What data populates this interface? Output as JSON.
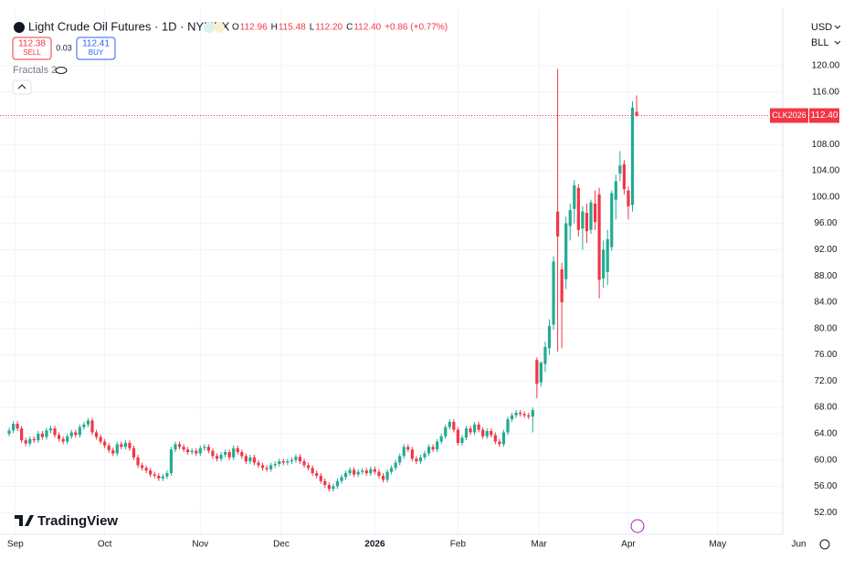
{
  "chart_data": {
    "type": "candlestick",
    "title": "Light Crude Oil Futures · 1D · NYMEX",
    "legend": [
      {
        "key": "O",
        "value": "112.96"
      },
      {
        "key": "H",
        "value": "115.48"
      },
      {
        "key": "L",
        "value": "112.20"
      },
      {
        "key": "C",
        "value": "112.40"
      }
    ],
    "change": "+0.86 (+0.77%)",
    "sell_price": "112.38",
    "sell_label": "SELL",
    "spread": "0.03",
    "buy_price": "112.41",
    "buy_label": "BUY",
    "indicator": "Fractals 2",
    "currency": "USD",
    "unit": "BLL",
    "symbol_tag": "CLK2026",
    "last_price_label": "112.40",
    "brand": "TradingView",
    "up_color": "#22ab94",
    "down_color": "#f23645",
    "grid": true,
    "xlim": [
      0,
      190
    ],
    "xticks": [
      {
        "value": 1.5,
        "label": "Sep"
      },
      {
        "value": 23,
        "label": "Oct"
      },
      {
        "value": 46,
        "label": "Nov"
      },
      {
        "value": 65.5,
        "label": "Dec"
      },
      {
        "value": 88,
        "label": "2026"
      },
      {
        "value": 108,
        "label": "Feb"
      },
      {
        "value": 127.5,
        "label": "Mar"
      },
      {
        "value": 149,
        "label": "Apr"
      },
      {
        "value": 170.5,
        "label": "May"
      },
      {
        "value": 190,
        "label": "Jun"
      }
    ],
    "ylim": [
      48.7,
      127.2
    ],
    "yticks": [
      {
        "value": 52,
        "label": "52.00"
      },
      {
        "value": 56,
        "label": "56.00"
      },
      {
        "value": 60,
        "label": "60.00"
      },
      {
        "value": 64,
        "label": "64.00"
      },
      {
        "value": 68,
        "label": "68.00"
      },
      {
        "value": 72,
        "label": "72.00"
      },
      {
        "value": 76,
        "label": "76.00"
      },
      {
        "value": 80,
        "label": "80.00"
      },
      {
        "value": 84,
        "label": "84.00"
      },
      {
        "value": 88,
        "label": "88.00"
      },
      {
        "value": 92,
        "label": "92.00"
      },
      {
        "value": 96,
        "label": "96.00"
      },
      {
        "value": 100,
        "label": "100.00"
      },
      {
        "value": 104,
        "label": "104.00"
      },
      {
        "value": 108,
        "label": "108.00"
      },
      {
        "value": 112,
        "label": "112.00"
      },
      {
        "value": 116,
        "label": "116.00"
      },
      {
        "value": 120,
        "label": "120.00"
      }
    ],
    "last_price": 112.4,
    "ohlc": [
      [
        64.0,
        64.9,
        63.6,
        64.5
      ],
      [
        64.5,
        65.9,
        64.1,
        65.5
      ],
      [
        65.5,
        65.9,
        64.4,
        64.8
      ],
      [
        64.8,
        65.2,
        62.6,
        63.0
      ],
      [
        63.0,
        63.4,
        62.1,
        62.5
      ],
      [
        62.5,
        63.6,
        62.1,
        63.2
      ],
      [
        63.2,
        63.6,
        62.6,
        63.0
      ],
      [
        63.0,
        64.4,
        62.6,
        64.0
      ],
      [
        64.0,
        64.4,
        63.1,
        63.5
      ],
      [
        63.5,
        64.9,
        63.1,
        64.5
      ],
      [
        64.5,
        65.2,
        64.1,
        64.8
      ],
      [
        64.8,
        65.2,
        63.4,
        63.8
      ],
      [
        63.8,
        64.2,
        62.8,
        63.2
      ],
      [
        63.2,
        63.6,
        62.4,
        62.8
      ],
      [
        62.8,
        64.0,
        62.4,
        63.6
      ],
      [
        63.6,
        64.6,
        63.2,
        64.2
      ],
      [
        64.2,
        64.6,
        63.4,
        63.8
      ],
      [
        63.8,
        65.4,
        63.4,
        65.0
      ],
      [
        65.0,
        65.8,
        64.6,
        65.4
      ],
      [
        65.4,
        66.4,
        65.0,
        66.0
      ],
      [
        66.0,
        66.4,
        63.8,
        64.2
      ],
      [
        64.2,
        64.6,
        63.1,
        63.5
      ],
      [
        63.5,
        63.9,
        62.4,
        62.8
      ],
      [
        62.8,
        63.2,
        61.8,
        62.2
      ],
      [
        62.2,
        62.6,
        61.1,
        61.5
      ],
      [
        61.5,
        61.9,
        60.6,
        61.0
      ],
      [
        61.0,
        62.8,
        60.6,
        62.4
      ],
      [
        62.4,
        62.8,
        61.6,
        62.0
      ],
      [
        62.0,
        63.0,
        61.6,
        62.6
      ],
      [
        62.6,
        63.0,
        61.4,
        61.8
      ],
      [
        61.8,
        62.2,
        60.0,
        60.4
      ],
      [
        60.4,
        60.8,
        58.8,
        59.2
      ],
      [
        59.2,
        59.6,
        58.4,
        58.8
      ],
      [
        58.8,
        59.2,
        58.0,
        58.4
      ],
      [
        58.4,
        58.8,
        57.4,
        57.8
      ],
      [
        57.8,
        58.2,
        57.2,
        57.6
      ],
      [
        57.6,
        58.0,
        56.8,
        57.2
      ],
      [
        57.2,
        57.9,
        56.8,
        57.5
      ],
      [
        57.5,
        58.4,
        57.1,
        58.0
      ],
      [
        58.0,
        62.0,
        57.6,
        61.6
      ],
      [
        61.6,
        62.8,
        61.2,
        62.4
      ],
      [
        62.4,
        62.8,
        61.6,
        62.0
      ],
      [
        62.0,
        62.4,
        61.2,
        61.6
      ],
      [
        61.6,
        62.0,
        60.8,
        61.2
      ],
      [
        61.2,
        61.8,
        60.8,
        61.4
      ],
      [
        61.4,
        61.8,
        60.6,
        61.0
      ],
      [
        61.0,
        62.2,
        60.6,
        61.8
      ],
      [
        61.8,
        62.4,
        61.4,
        62.0
      ],
      [
        62.0,
        62.4,
        61.0,
        61.4
      ],
      [
        61.4,
        61.8,
        60.2,
        60.6
      ],
      [
        60.6,
        61.0,
        59.8,
        60.2
      ],
      [
        60.2,
        61.2,
        59.8,
        60.8
      ],
      [
        60.8,
        61.6,
        60.4,
        61.2
      ],
      [
        61.2,
        61.6,
        60.0,
        60.4
      ],
      [
        60.4,
        62.2,
        60.0,
        61.8
      ],
      [
        61.8,
        62.2,
        60.8,
        61.2
      ],
      [
        61.2,
        61.6,
        60.2,
        60.6
      ],
      [
        60.6,
        61.0,
        59.4,
        59.8
      ],
      [
        59.8,
        60.8,
        59.4,
        60.4
      ],
      [
        60.4,
        60.8,
        59.2,
        59.6
      ],
      [
        59.6,
        60.0,
        58.8,
        59.2
      ],
      [
        59.2,
        59.6,
        58.4,
        58.8
      ],
      [
        58.8,
        59.2,
        58.2,
        58.6
      ],
      [
        58.6,
        59.6,
        58.2,
        59.2
      ],
      [
        59.2,
        59.8,
        58.8,
        59.4
      ],
      [
        59.4,
        60.2,
        59.0,
        59.8
      ],
      [
        59.8,
        60.2,
        59.2,
        59.6
      ],
      [
        59.6,
        60.2,
        59.2,
        59.8
      ],
      [
        59.8,
        60.4,
        59.4,
        60.0
      ],
      [
        60.0,
        60.9,
        59.6,
        60.5
      ],
      [
        60.5,
        60.9,
        59.4,
        59.8
      ],
      [
        59.8,
        60.2,
        58.8,
        59.2
      ],
      [
        59.2,
        59.6,
        58.4,
        58.8
      ],
      [
        58.8,
        59.2,
        57.6,
        58.0
      ],
      [
        58.0,
        58.4,
        57.2,
        57.6
      ],
      [
        57.6,
        58.0,
        56.4,
        56.8
      ],
      [
        56.8,
        57.2,
        55.8,
        56.2
      ],
      [
        56.2,
        56.6,
        55.2,
        55.6
      ],
      [
        55.6,
        56.4,
        55.2,
        56.0
      ],
      [
        56.0,
        57.2,
        55.6,
        56.8
      ],
      [
        56.8,
        57.8,
        56.4,
        57.4
      ],
      [
        57.4,
        58.4,
        57.0,
        58.0
      ],
      [
        58.0,
        58.9,
        57.6,
        58.5
      ],
      [
        58.5,
        58.9,
        57.4,
        57.8
      ],
      [
        57.8,
        58.6,
        57.4,
        58.2
      ],
      [
        58.2,
        58.8,
        57.8,
        58.4
      ],
      [
        58.4,
        58.8,
        57.6,
        58.0
      ],
      [
        58.0,
        59.0,
        57.6,
        58.6
      ],
      [
        58.6,
        59.0,
        57.8,
        58.2
      ],
      [
        58.2,
        58.6,
        57.2,
        57.6
      ],
      [
        57.6,
        58.0,
        56.6,
        57.0
      ],
      [
        57.0,
        58.6,
        56.6,
        58.2
      ],
      [
        58.2,
        59.2,
        57.8,
        58.8
      ],
      [
        58.8,
        60.0,
        58.4,
        59.6
      ],
      [
        59.6,
        61.0,
        59.2,
        60.6
      ],
      [
        60.6,
        62.4,
        60.2,
        62.0
      ],
      [
        62.0,
        62.4,
        61.2,
        61.6
      ],
      [
        61.6,
        62.0,
        59.8,
        60.2
      ],
      [
        60.2,
        60.6,
        59.4,
        59.8
      ],
      [
        59.8,
        60.8,
        59.4,
        60.4
      ],
      [
        60.4,
        61.4,
        60.0,
        61.0
      ],
      [
        61.0,
        62.4,
        60.6,
        62.0
      ],
      [
        62.0,
        62.4,
        61.2,
        61.6
      ],
      [
        61.6,
        63.2,
        61.2,
        62.8
      ],
      [
        62.8,
        64.0,
        62.4,
        63.6
      ],
      [
        63.6,
        65.4,
        63.2,
        65.0
      ],
      [
        65.0,
        66.2,
        64.6,
        65.8
      ],
      [
        65.8,
        66.2,
        64.2,
        64.6
      ],
      [
        64.6,
        65.0,
        62.2,
        62.6
      ],
      [
        62.6,
        63.8,
        62.2,
        63.4
      ],
      [
        63.4,
        65.2,
        63.0,
        64.8
      ],
      [
        64.8,
        65.2,
        63.8,
        64.2
      ],
      [
        64.2,
        65.8,
        63.8,
        65.4
      ],
      [
        65.4,
        65.8,
        64.2,
        64.6
      ],
      [
        64.6,
        65.0,
        63.2,
        63.6
      ],
      [
        63.6,
        64.8,
        63.2,
        64.4
      ],
      [
        64.4,
        64.8,
        63.4,
        63.8
      ],
      [
        63.8,
        64.2,
        62.4,
        62.8
      ],
      [
        62.8,
        63.2,
        62.0,
        62.4
      ],
      [
        62.4,
        64.6,
        62.0,
        64.2
      ],
      [
        64.2,
        66.6,
        63.8,
        66.2
      ],
      [
        66.2,
        67.2,
        65.8,
        66.8
      ],
      [
        66.8,
        67.6,
        66.4,
        67.2
      ],
      [
        67.2,
        67.6,
        66.6,
        67.0
      ],
      [
        67.0,
        67.4,
        66.4,
        66.8
      ],
      [
        66.8,
        67.2,
        66.2,
        66.6
      ],
      [
        66.6,
        68.0,
        64.2,
        67.6
      ],
      [
        75.2,
        75.6,
        69.4,
        71.6
      ],
      [
        71.8,
        75.0,
        71.2,
        74.8
      ],
      [
        74.6,
        78.0,
        73.4,
        77.2
      ],
      [
        77.0,
        81.4,
        76.0,
        80.4
      ],
      [
        80.6,
        91.0,
        79.8,
        90.2
      ],
      [
        97.8,
        119.5,
        76.5,
        94.0
      ],
      [
        89.0,
        90.0,
        77.0,
        84.0
      ],
      [
        87.5,
        97.0,
        86.0,
        96.0
      ],
      [
        95.6,
        99.0,
        93.4,
        98.0
      ],
      [
        98.2,
        102.6,
        96.0,
        101.8
      ],
      [
        101.4,
        102.0,
        94.0,
        95.0
      ],
      [
        95.2,
        98.6,
        92.0,
        97.8
      ],
      [
        97.6,
        99.0,
        93.0,
        94.8
      ],
      [
        95.0,
        99.6,
        94.4,
        99.2
      ],
      [
        99.0,
        101.0,
        95.0,
        96.2
      ],
      [
        100.4,
        101.4,
        84.6,
        87.4
      ],
      [
        87.6,
        93.4,
        86.2,
        92.0
      ],
      [
        88.6,
        95.0,
        86.6,
        93.6
      ],
      [
        92.4,
        101.0,
        91.8,
        100.6
      ],
      [
        99.6,
        103.4,
        96.6,
        102.4
      ],
      [
        103.6,
        107.0,
        102.4,
        104.8
      ],
      [
        105.0,
        105.6,
        100.4,
        101.2
      ],
      [
        101.0,
        101.6,
        96.6,
        98.6
      ],
      [
        98.8,
        114.6,
        97.8,
        113.6
      ],
      [
        112.96,
        115.48,
        112.2,
        112.4
      ]
    ]
  }
}
